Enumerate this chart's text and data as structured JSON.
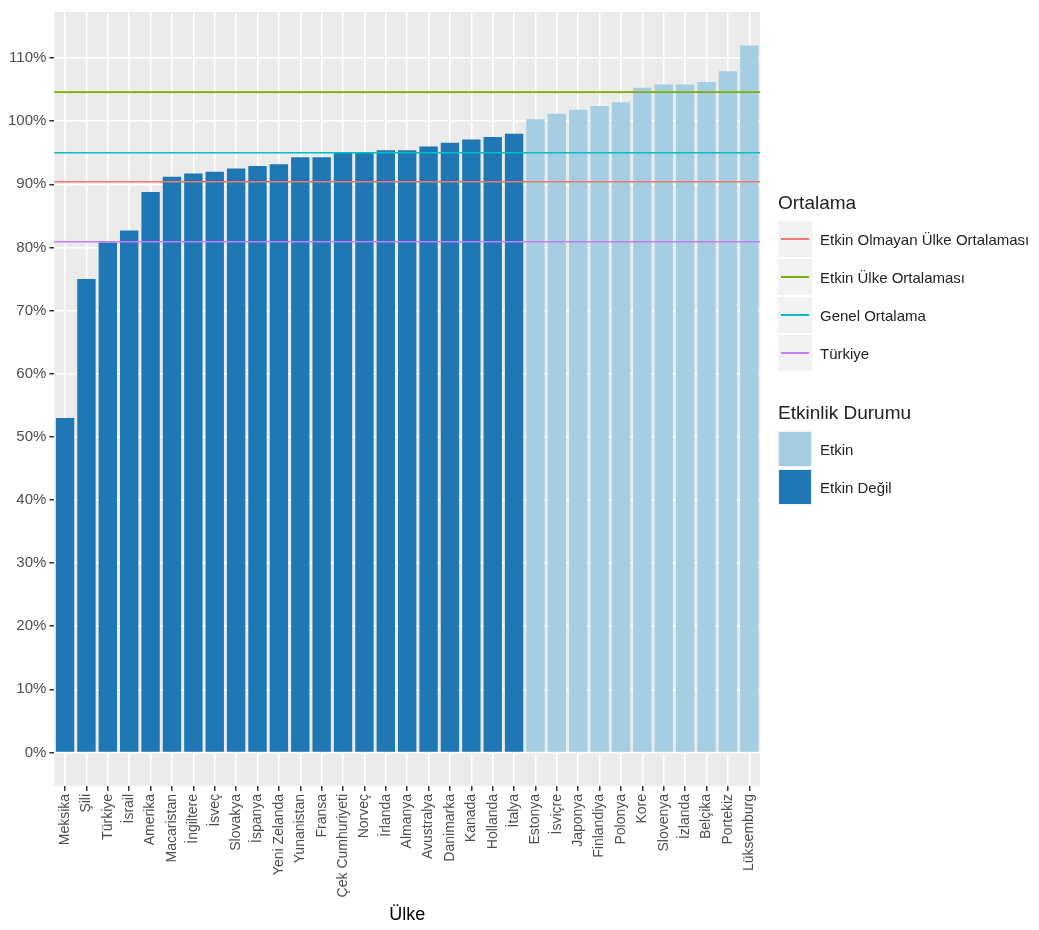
{
  "chart_data": {
    "type": "bar",
    "xlabel": "Ülke",
    "legend_title": "Etkinlik Durumu",
    "annotations": [
      "Ortalama"
    ],
    "categories": [
      "Meksika",
      "Şili",
      "Türkiye",
      "İsrail",
      "Amerika",
      "Macaristan",
      "İngiltere",
      "İsveç",
      "Slovakya",
      "İspanya",
      "Yeni Zelanda",
      "Yunanistan",
      "Fransa",
      "Çek Cumhuriyeti",
      "Norveç",
      "İrlanda",
      "Almanya",
      "Avustralya",
      "Danimarka",
      "Kanada",
      "Hollanda",
      "İtalya",
      "Estonya",
      "İsviçre",
      "Japonya",
      "Finlandiya",
      "Polonya",
      "Kore",
      "Slovenya",
      "İzlanda",
      "Belçika",
      "Portekiz",
      "Lüksemburg"
    ],
    "series": [
      {
        "name": "Etkin",
        "color": "#a6cee3",
        "values": [
          null,
          null,
          null,
          null,
          null,
          null,
          null,
          null,
          null,
          null,
          null,
          null,
          null,
          null,
          null,
          null,
          null,
          null,
          null,
          null,
          null,
          null,
          100.3,
          101.2,
          101.8,
          102.4,
          103.0,
          105.3,
          105.8,
          105.8,
          106.2,
          107.9,
          112.0
        ]
      },
      {
        "name": "Etkin Değil",
        "color": "#1f78b4",
        "values": [
          53,
          75,
          80.8,
          82.7,
          88.8,
          91.2,
          91.7,
          92.0,
          92.5,
          92.9,
          93.2,
          94.3,
          94.3,
          95.0,
          95.0,
          95.4,
          95.4,
          96.0,
          96.6,
          97.1,
          97.5,
          98.0,
          null,
          null,
          null,
          null,
          null,
          null,
          null,
          null,
          null,
          null,
          null
        ]
      }
    ],
    "ylim": [
      -5.3,
      117.3
    ],
    "yticks": [
      {
        "value": 0,
        "label": "0%"
      },
      {
        "value": 10,
        "label": "10%"
      },
      {
        "value": 20,
        "label": "20%"
      },
      {
        "value": 30,
        "label": "30%"
      },
      {
        "value": 40,
        "label": "40%"
      },
      {
        "value": 50,
        "label": "50%"
      },
      {
        "value": 60,
        "label": "60%"
      },
      {
        "value": 70,
        "label": "70%"
      },
      {
        "value": 80,
        "label": "80%"
      },
      {
        "value": 90,
        "label": "90%"
      },
      {
        "value": 100,
        "label": "100%"
      },
      {
        "value": 110,
        "label": "110%"
      }
    ],
    "ref_lines": [
      {
        "axis": "y",
        "value": 90.4,
        "label": "Etkin Olmayan Ülke Ortalaması",
        "color": "#f8766d"
      },
      {
        "axis": "y",
        "value": 104.6,
        "label": "Etkin Ülke Ortalaması",
        "color": "#7cae00"
      },
      {
        "axis": "y",
        "value": 95.0,
        "label": "Genel Ortalama",
        "color": "#00bfc4"
      },
      {
        "axis": "y",
        "value": 80.9,
        "label": "Türkiye",
        "color": "#c77cff"
      }
    ],
    "grid": true,
    "legend": "right"
  }
}
